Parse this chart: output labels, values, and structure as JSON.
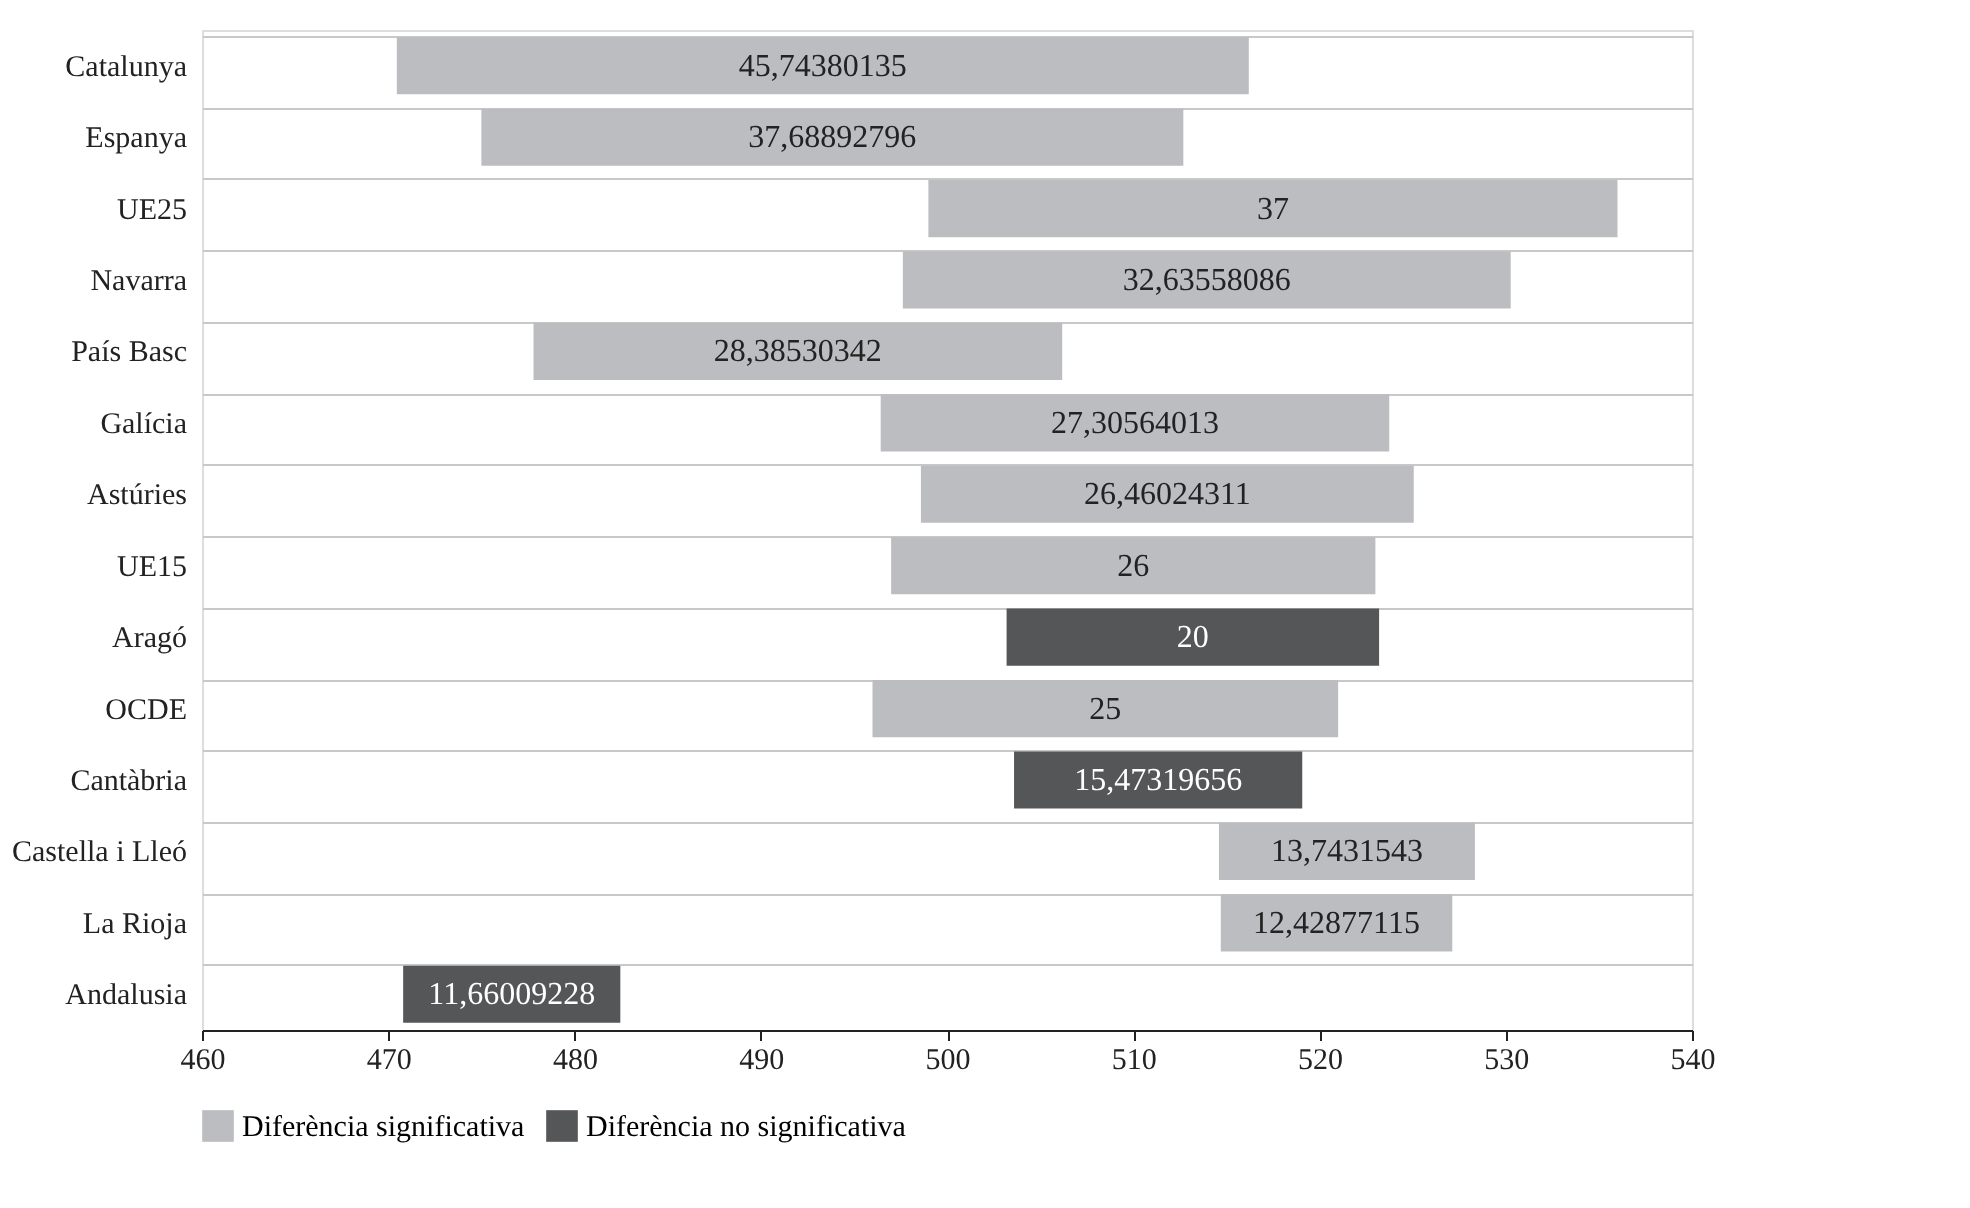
{
  "chart_data": {
    "type": "bar",
    "orientation": "horizontal",
    "categories": [
      "Catalunya",
      "Espanya",
      "UE25",
      "Navarra",
      "País Basc",
      "Galícia",
      "Astúries",
      "UE15",
      "Aragó",
      "OCDE",
      "Cantàbria",
      "Castella i Lleó",
      "La Rioja",
      "Andalusia"
    ],
    "series": [
      {
        "name": "Diferència significativa",
        "color": "#bcbdc0",
        "base": [
          470.46,
          475.0,
          499.0,
          497.63,
          477.8,
          496.44,
          498.6,
          497.0,
          null,
          496.0,
          null,
          514.6,
          514.7,
          null
        ],
        "values": [
          45.74380135,
          37.68892796,
          37,
          32.63558086,
          28.38530342,
          27.30564013,
          26.46024311,
          26,
          null,
          25,
          null,
          13.7431543,
          12.42877115,
          null
        ],
        "value_labels": [
          "45,74380135",
          "37,68892796",
          "37",
          "32,63558086",
          "28,38530342",
          "27,30564013",
          "26,46024311",
          "26",
          null,
          "25",
          null,
          "13,7431543",
          "12,42877115",
          null
        ]
      },
      {
        "name": "Diferència no significativa",
        "color": "#555658",
        "base": [
          null,
          null,
          null,
          null,
          null,
          null,
          null,
          null,
          503.2,
          null,
          503.6,
          null,
          null,
          470.8
        ],
        "values": [
          null,
          null,
          null,
          null,
          null,
          null,
          null,
          null,
          20,
          null,
          15.47319656,
          null,
          null,
          11.66009228
        ],
        "value_labels": [
          null,
          null,
          null,
          null,
          null,
          null,
          null,
          null,
          "20",
          null,
          "15,47319656",
          null,
          null,
          "11,66009228"
        ]
      }
    ],
    "xlim": [
      460,
      540
    ],
    "xticks": [
      460,
      470,
      480,
      490,
      500,
      510,
      520,
      530,
      540
    ],
    "grid": "y",
    "legend": "bottom"
  }
}
